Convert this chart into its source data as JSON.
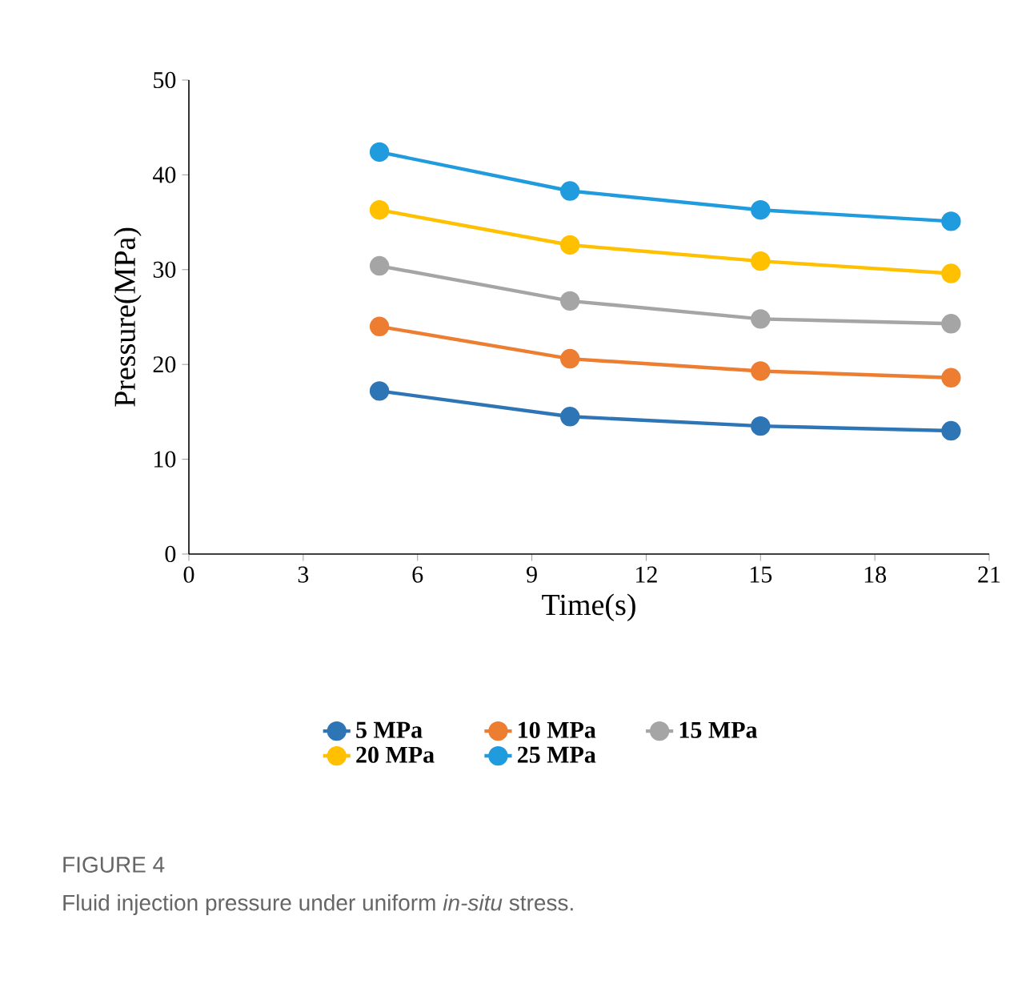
{
  "chart_data": {
    "type": "line",
    "xlabel": "Time(s)",
    "ylabel": "Pressure(MPa)",
    "annotations": [
      "FIGURE 4",
      "Fluid injection pressure under uniform *in-situ* stress."
    ],
    "x": [
      5,
      10,
      15,
      20
    ],
    "series": [
      {
        "name": "5 MPa",
        "color": "#2e75b6",
        "values": [
          17.2,
          14.5,
          13.5,
          13.0
        ]
      },
      {
        "name": "10 MPa",
        "color": "#ed7d31",
        "values": [
          24.0,
          20.6,
          19.3,
          18.6
        ]
      },
      {
        "name": "15 MPa",
        "color": "#a5a5a5",
        "values": [
          30.4,
          26.7,
          24.8,
          24.3
        ]
      },
      {
        "name": "20 MPa",
        "color": "#ffc000",
        "values": [
          36.3,
          32.6,
          30.9,
          29.6
        ]
      },
      {
        "name": "25 MPa",
        "color": "#1f9bde",
        "values": [
          42.4,
          38.3,
          36.3,
          35.1
        ]
      }
    ],
    "xlim": [
      0,
      21
    ],
    "ylim": [
      0,
      50
    ],
    "xticks": [
      0,
      3,
      6,
      9,
      12,
      15,
      18,
      21
    ],
    "yticks": [
      0,
      10,
      20,
      30,
      40,
      50
    ],
    "grid": false,
    "legend": "bottom",
    "marker": "circle",
    "line_style": "solid"
  }
}
